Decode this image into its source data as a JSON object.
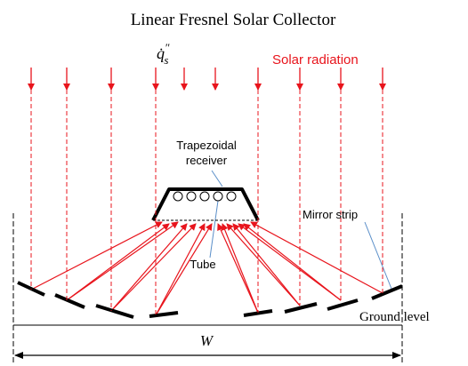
{
  "title": "Linear Fresnel Solar Collector",
  "flux_label": {
    "symbol": "q̇",
    "superscript": "″",
    "subscript": "s"
  },
  "solar_radiation_label": "Solar radiation",
  "receiver_label": [
    "Trapezoidal",
    "receiver"
  ],
  "tube_label": "Tube",
  "mirror_label": "Mirror strip",
  "ground_label": "Ground level",
  "width_label": "W"
}
